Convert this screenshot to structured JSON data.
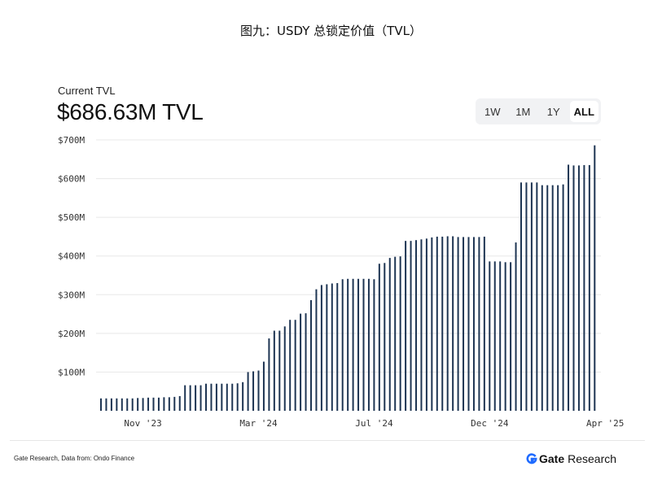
{
  "title": "图九：USDY 总锁定价值（TVL）",
  "header": {
    "label": "Current TVL",
    "value": "$686.63M TVL"
  },
  "range_buttons": [
    {
      "label": "1W",
      "active": false
    },
    {
      "label": "1M",
      "active": false
    },
    {
      "label": "1Y",
      "active": false
    },
    {
      "label": "ALL",
      "active": true
    }
  ],
  "footer": {
    "source": "Gate Research, Data from: Ondo Finance",
    "brand_name": "Gate",
    "brand_suffix": "Research"
  },
  "colors": {
    "bar": "#1e3553",
    "grid": "#e8e8e8",
    "brand_icon": "#1f6bff"
  },
  "chart_data": {
    "type": "bar",
    "title": "",
    "xlabel": "",
    "ylabel": "",
    "ylim": [
      0,
      700
    ],
    "yticks": [
      {
        "value": 100,
        "label": "$100M"
      },
      {
        "value": 200,
        "label": "$200M"
      },
      {
        "value": 300,
        "label": "$300M"
      },
      {
        "value": 400,
        "label": "$400M"
      },
      {
        "value": 500,
        "label": "$500M"
      },
      {
        "value": 600,
        "label": "$600M"
      },
      {
        "value": 700,
        "label": "$700M"
      }
    ],
    "xticks": [
      {
        "index": 8,
        "label": "Nov '23"
      },
      {
        "index": 30,
        "label": "Mar '24"
      },
      {
        "index": 52,
        "label": "Jul '24"
      },
      {
        "index": 74,
        "label": "Dec '24"
      },
      {
        "index": 96,
        "label": "Apr '25"
      }
    ],
    "grid": true,
    "legend": "none",
    "values": [
      32,
      32,
      32,
      32,
      32,
      32,
      32,
      33,
      33,
      34,
      34,
      34,
      35,
      35,
      36,
      38,
      66,
      66,
      66,
      66,
      70,
      70,
      70,
      70,
      70,
      70,
      71,
      74,
      100,
      102,
      104,
      127,
      187,
      207,
      207,
      218,
      235,
      235,
      251,
      252,
      286,
      314,
      325,
      327,
      329,
      330,
      340,
      341,
      341,
      341,
      341,
      341,
      340,
      380,
      382,
      395,
      398,
      399,
      439,
      439,
      441,
      443,
      445,
      448,
      450,
      450,
      451,
      451,
      449,
      449,
      449,
      449,
      449,
      450,
      386,
      386,
      386,
      384,
      384,
      435,
      590,
      590,
      590,
      590,
      583,
      583,
      583,
      583,
      585,
      636,
      634,
      634,
      635,
      635,
      686
    ]
  }
}
